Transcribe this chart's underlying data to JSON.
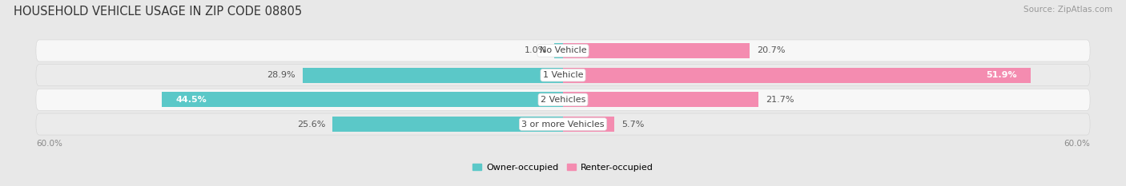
{
  "title": "HOUSEHOLD VEHICLE USAGE IN ZIP CODE 08805",
  "source": "Source: ZipAtlas.com",
  "categories": [
    "No Vehicle",
    "1 Vehicle",
    "2 Vehicles",
    "3 or more Vehicles"
  ],
  "owner_values": [
    1.0,
    28.9,
    44.5,
    25.6
  ],
  "renter_values": [
    20.7,
    51.9,
    21.7,
    5.7
  ],
  "owner_color": "#5BC8C8",
  "renter_color": "#F48CB0",
  "axis_max": 60.0,
  "axis_min": -60.0,
  "axis_label_left": "60.0%",
  "axis_label_right": "60.0%",
  "bar_height": 0.62,
  "bg_color": "#e8e8e8",
  "row_light": "#f7f7f7",
  "row_dark": "#ebebeb",
  "title_fontsize": 10.5,
  "source_fontsize": 7.5,
  "label_fontsize": 8,
  "category_fontsize": 8
}
